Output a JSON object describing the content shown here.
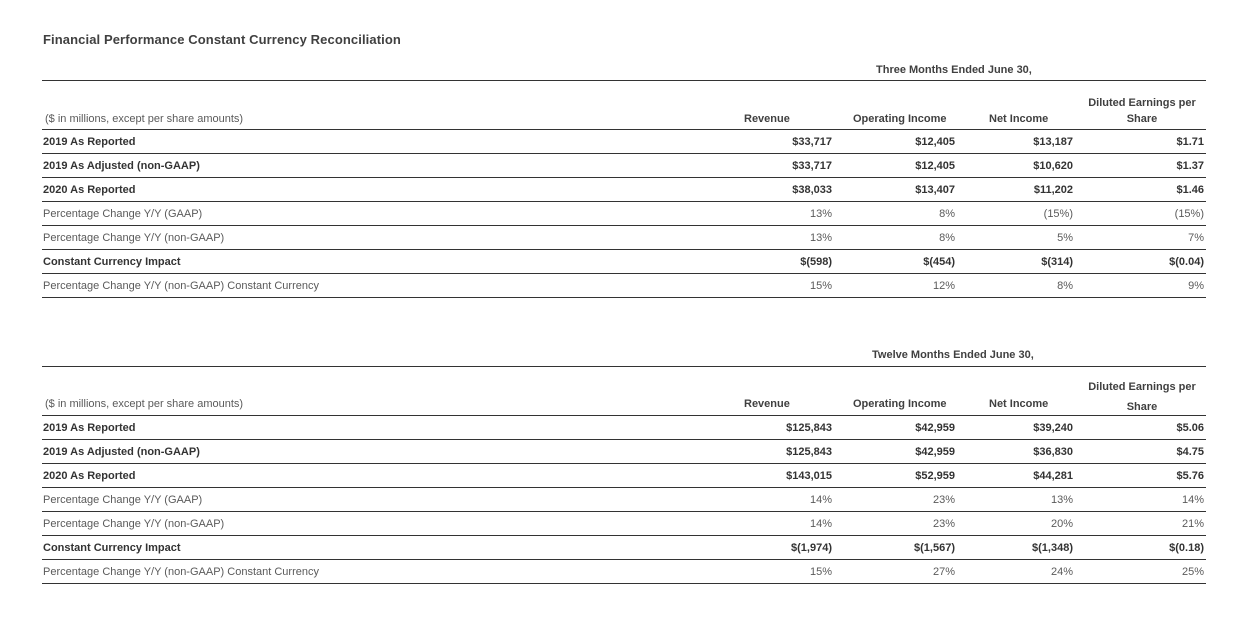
{
  "title": "Financial Performance Constant Currency Reconciliation",
  "columns": {
    "units": "($ in millions, except per share amounts)",
    "revenue": "Revenue",
    "operating_income": "Operating Income",
    "net_income": "Net Income",
    "eps_line1": "Diluted Earnings per",
    "eps_line2": "Share"
  },
  "three_months": {
    "period": "Three Months Ended June 30,",
    "rows": [
      {
        "label": "2019 As Reported",
        "style": "bold",
        "revenue": "$33,717",
        "operating_income": "$12,405",
        "net_income": "$13,187",
        "eps": "$1.71"
      },
      {
        "label": "2019 As Adjusted (non-GAAP)",
        "style": "bold",
        "revenue": "$33,717",
        "operating_income": "$12,405",
        "net_income": "$10,620",
        "eps": "$1.37"
      },
      {
        "label": "2020 As Reported",
        "style": "bold",
        "revenue": "$38,033",
        "operating_income": "$13,407",
        "net_income": "$11,202",
        "eps": "$1.46"
      },
      {
        "label": "Percentage Change Y/Y (GAAP)",
        "style": "light",
        "revenue": "13%",
        "operating_income": "8%",
        "net_income": "(15%)",
        "eps": "(15%)"
      },
      {
        "label": "Percentage Change Y/Y (non-GAAP)",
        "style": "light",
        "revenue": "13%",
        "operating_income": "8%",
        "net_income": "5%",
        "eps": "7%"
      },
      {
        "label": "Constant Currency Impact",
        "style": "bold",
        "revenue": "$(598)",
        "operating_income": "$(454)",
        "net_income": "$(314)",
        "eps": "$(0.04)"
      },
      {
        "label": "Percentage Change Y/Y (non-GAAP) Constant Currency",
        "style": "light",
        "revenue": "15%",
        "operating_income": "12%",
        "net_income": "8%",
        "eps": "9%"
      }
    ]
  },
  "twelve_months": {
    "period": "Twelve Months Ended June 30,",
    "rows": [
      {
        "label": "2019 As Reported",
        "style": "bold",
        "revenue": "$125,843",
        "operating_income": "$42,959",
        "net_income": "$39,240",
        "eps": "$5.06"
      },
      {
        "label": "2019 As Adjusted (non-GAAP)",
        "style": "bold",
        "revenue": "$125,843",
        "operating_income": "$42,959",
        "net_income": "$36,830",
        "eps": "$4.75"
      },
      {
        "label": "2020 As Reported",
        "style": "bold",
        "revenue": "$143,015",
        "operating_income": "$52,959",
        "net_income": "$44,281",
        "eps": "$5.76"
      },
      {
        "label": "Percentage Change Y/Y (GAAP)",
        "style": "light",
        "revenue": "14%",
        "operating_income": "23%",
        "net_income": "13%",
        "eps": "14%"
      },
      {
        "label": "Percentage Change Y/Y (non-GAAP)",
        "style": "light",
        "revenue": "14%",
        "operating_income": "23%",
        "net_income": "20%",
        "eps": "21%"
      },
      {
        "label": "Constant Currency Impact",
        "style": "bold",
        "revenue": "$(1,974)",
        "operating_income": "$(1,567)",
        "net_income": "$(1,348)",
        "eps": "$(0.18)"
      },
      {
        "label": "Percentage Change Y/Y (non-GAAP) Constant Currency",
        "style": "light",
        "revenue": "15%",
        "operating_income": "27%",
        "net_income": "24%",
        "eps": "25%"
      }
    ]
  }
}
